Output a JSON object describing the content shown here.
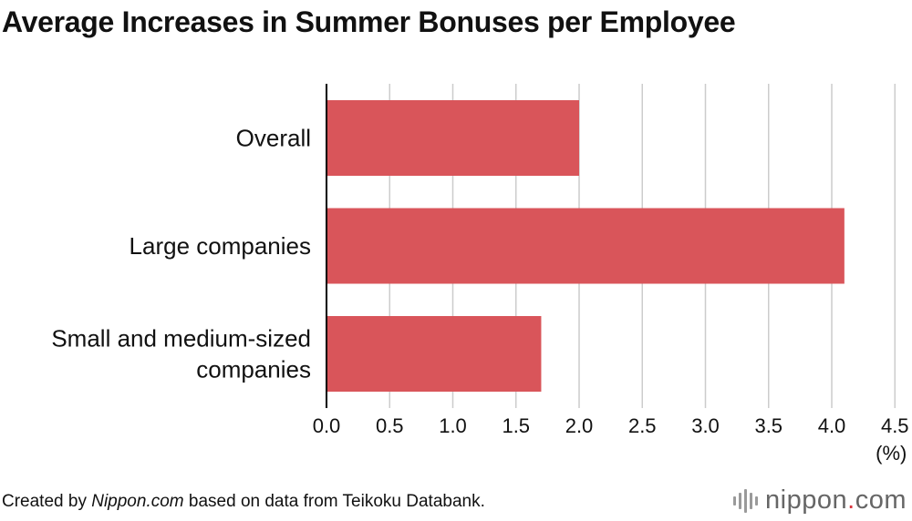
{
  "title": "Average Increases in Summer Bonuses per Employee",
  "footer": {
    "prefix": "Created by ",
    "source_name": "Nippon.com",
    "suffix": " based on data from Teikoku Databank."
  },
  "brand": {
    "name_a": "nippon",
    "dot": ".",
    "name_b": "com"
  },
  "colors": {
    "bar": "#d9555a",
    "grid": "#cccccc",
    "axis": "#000000"
  },
  "chart_data": {
    "type": "bar",
    "orientation": "horizontal",
    "title": "Average Increases in Summer Bonuses per Employee",
    "categories": [
      [
        "Overall"
      ],
      [
        "Large companies"
      ],
      [
        "Small and medium-sized",
        "companies"
      ]
    ],
    "values": [
      2.0,
      4.1,
      1.7
    ],
    "xlim": [
      0,
      4.5
    ],
    "xticks": [
      "0.0",
      "0.5",
      "1.0",
      "1.5",
      "2.0",
      "2.5",
      "3.0",
      "3.5",
      "4.0",
      "4.5"
    ],
    "x_unit": "(%)",
    "grid": "vertical"
  }
}
